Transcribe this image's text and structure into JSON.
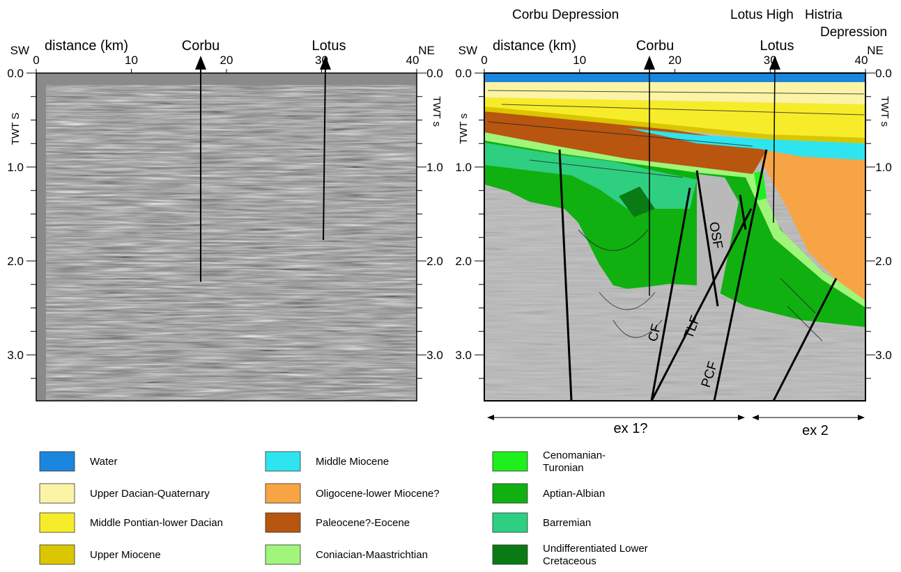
{
  "left_panel": {
    "sw": "SW",
    "ne": "NE",
    "x_label": "distance (km)",
    "x_ticks": [
      "0",
      "10",
      "20",
      "30",
      "40"
    ],
    "y_ticks_left": [
      "0.0",
      "1.0",
      "2.0",
      "3.0"
    ],
    "y_ticks_right": [
      "0.0",
      "1.0",
      "2.0",
      "3.0"
    ],
    "y_label_left": "TWT S",
    "y_label_right": "TWT s",
    "wells": [
      "Corbu",
      "Lotus"
    ]
  },
  "right_panel": {
    "sw": "SW",
    "ne": "NE",
    "x_label": "distance (km)",
    "x_ticks": [
      "0",
      "10",
      "20",
      "30",
      "40"
    ],
    "y_ticks_left": [
      "0.0",
      "1.0",
      "2.0",
      "3.0"
    ],
    "y_ticks_right": [
      "0.0",
      "1.0",
      "2.0",
      "3.0"
    ],
    "y_label_left": "TWT s",
    "y_label_right": "TWT s",
    "wells": [
      "Corbu",
      "Lotus"
    ],
    "regions": [
      [
        "Corbu Depression"
      ],
      [
        "Lotus High"
      ],
      [
        "Histria",
        "Depression"
      ]
    ],
    "faults": [
      "CF",
      "TLF",
      "PCF",
      "OSF"
    ],
    "extensions": [
      "ex 1?",
      "ex 2"
    ]
  },
  "legend": [
    {
      "label": [
        "Water"
      ],
      "color": "#1b86dd"
    },
    {
      "label": [
        "Upper Dacian-Quaternary"
      ],
      "color": "#fbf3a6"
    },
    {
      "label": [
        "Middle Pontian-lower Dacian"
      ],
      "color": "#f7ec2a"
    },
    {
      "label": [
        "Upper Miocene"
      ],
      "color": "#d9c600"
    },
    {
      "label": [
        "Middle Miocene"
      ],
      "color": "#2ee4ee"
    },
    {
      "label": [
        "Oligocene-lower Miocene?"
      ],
      "color": "#f7a544"
    },
    {
      "label": [
        "Paleocene?-Eocene"
      ],
      "color": "#b8550f"
    },
    {
      "label": [
        "Coniacian-Maastrichtian"
      ],
      "color": "#a0f57a"
    },
    {
      "label": [
        "Cenomanian-",
        "Turonian"
      ],
      "color": "#1ef01e"
    },
    {
      "label": [
        "Aptian-Albian"
      ],
      "color": "#10b010"
    },
    {
      "label": [
        "Barremian"
      ],
      "color": "#2fcf82"
    },
    {
      "label": [
        "Undifferentiated Lower",
        "Cretaceous"
      ],
      "color": "#0a7a14"
    }
  ]
}
